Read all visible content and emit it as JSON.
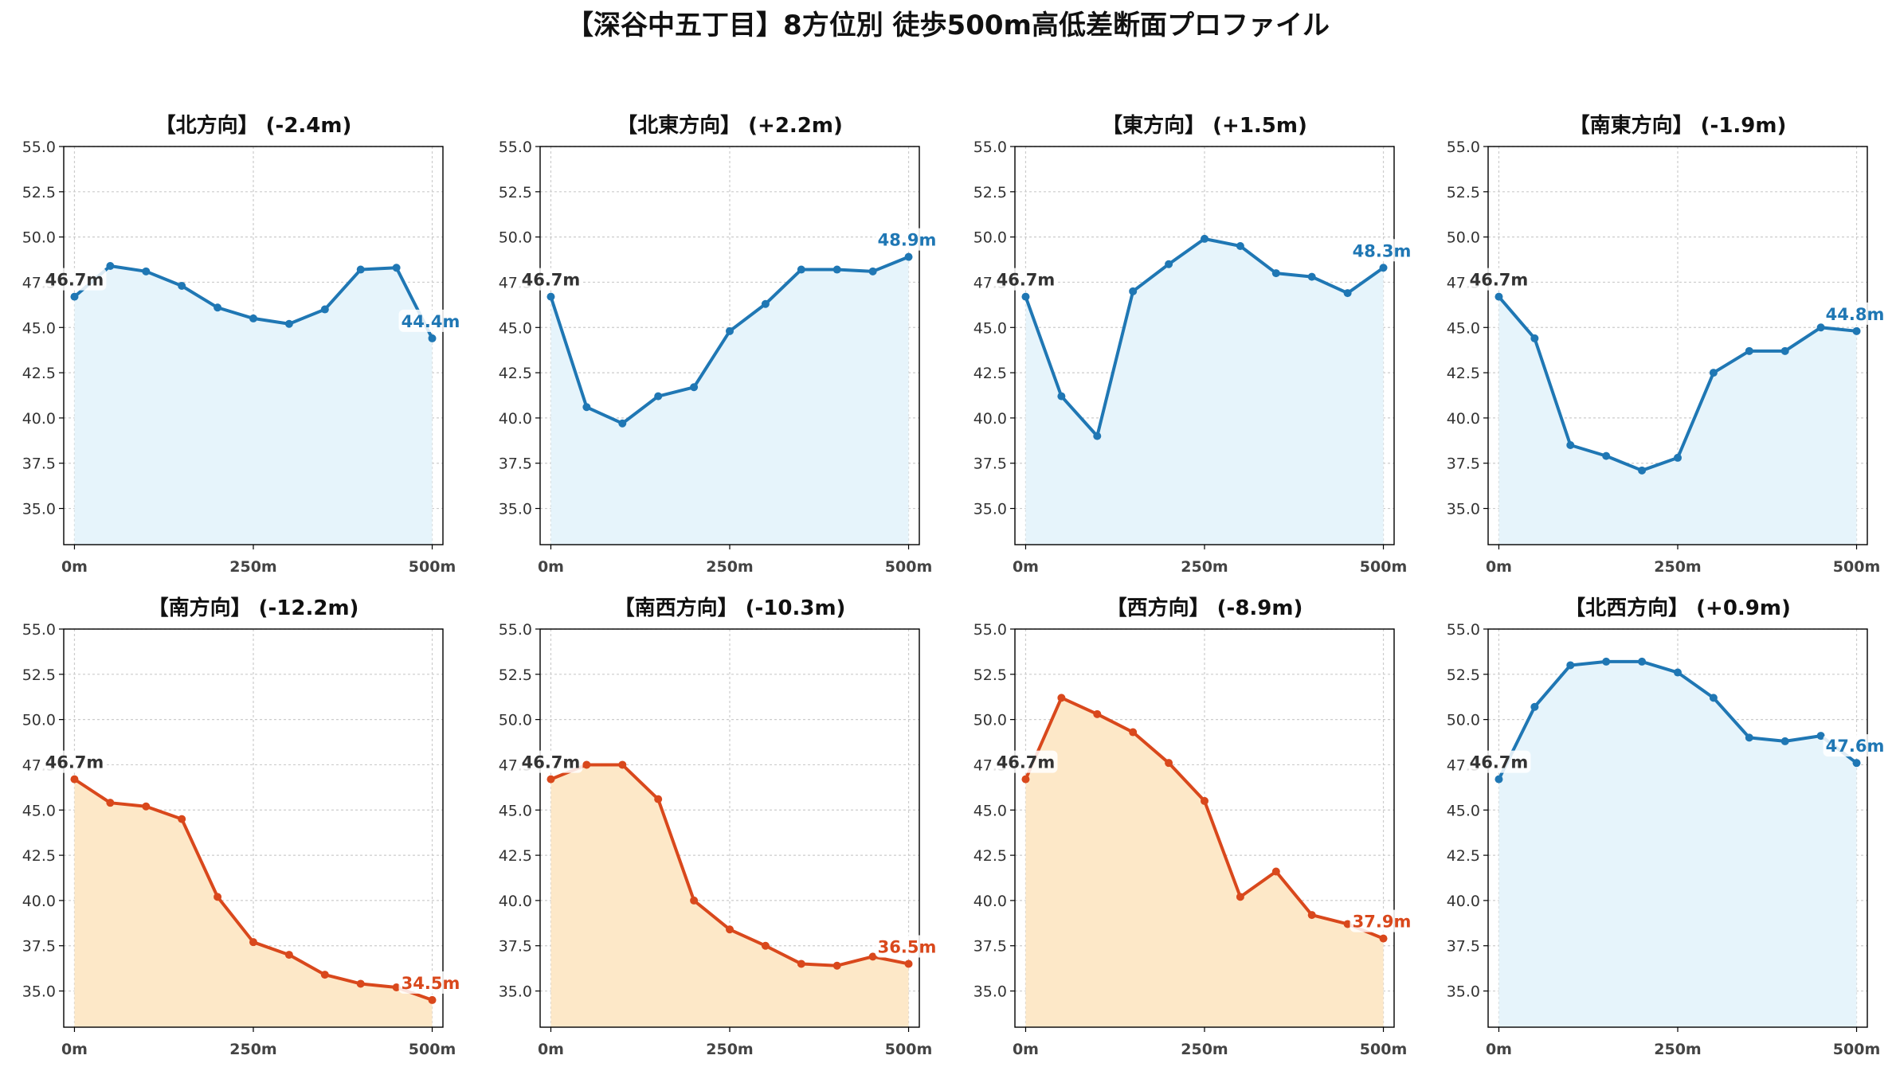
{
  "title": "【深谷中五丁目】8方位別 徒歩500m高低差断面プロファイル",
  "colors": {
    "up_line": "#1f77b4",
    "up_fill": "#e6f4fb",
    "down_line": "#d9481c",
    "down_fill": "#fde8c8",
    "start_label": "#333333",
    "grid": "#cccccc"
  },
  "chart_data": [
    {
      "type": "area",
      "title": "【北方向】 (-2.4m)",
      "trend": "up",
      "x": [
        0,
        50,
        100,
        150,
        200,
        250,
        300,
        350,
        400,
        450,
        500
      ],
      "values": [
        46.7,
        48.4,
        48.1,
        47.3,
        46.1,
        45.5,
        45.2,
        46.0,
        48.2,
        48.3,
        44.4
      ],
      "start_label": "46.7m",
      "end_label": "44.4m",
      "xticks": [
        "0m",
        "250m",
        "500m"
      ],
      "yticks": [
        "35.0",
        "37.5",
        "40.0",
        "42.5",
        "45.0",
        "47.5",
        "50.0",
        "52.5",
        "55.0"
      ],
      "ylim": [
        33,
        55
      ],
      "xlim": [
        -15,
        515
      ],
      "grid": true
    },
    {
      "type": "area",
      "title": "【北東方向】 (+2.2m)",
      "trend": "up",
      "x": [
        0,
        50,
        100,
        150,
        200,
        250,
        300,
        350,
        400,
        450,
        500
      ],
      "values": [
        46.7,
        40.6,
        39.7,
        41.2,
        41.7,
        44.8,
        46.3,
        48.2,
        48.2,
        48.1,
        48.9
      ],
      "start_label": "46.7m",
      "end_label": "48.9m",
      "xticks": [
        "0m",
        "250m",
        "500m"
      ],
      "yticks": [
        "35.0",
        "37.5",
        "40.0",
        "42.5",
        "45.0",
        "47.5",
        "50.0",
        "52.5",
        "55.0"
      ],
      "ylim": [
        33,
        55
      ],
      "xlim": [
        -15,
        515
      ],
      "grid": true
    },
    {
      "type": "area",
      "title": "【東方向】 (+1.5m)",
      "trend": "up",
      "x": [
        0,
        50,
        100,
        150,
        200,
        250,
        300,
        350,
        400,
        450,
        500
      ],
      "values": [
        46.7,
        41.2,
        39.0,
        47.0,
        48.5,
        49.9,
        49.5,
        48.0,
        47.8,
        46.9,
        48.3
      ],
      "start_label": "46.7m",
      "end_label": "48.3m",
      "xticks": [
        "0m",
        "250m",
        "500m"
      ],
      "yticks": [
        "35.0",
        "37.5",
        "40.0",
        "42.5",
        "45.0",
        "47.5",
        "50.0",
        "52.5",
        "55.0"
      ],
      "ylim": [
        33,
        55
      ],
      "xlim": [
        -15,
        515
      ],
      "grid": true
    },
    {
      "type": "area",
      "title": "【南東方向】 (-1.9m)",
      "trend": "up",
      "x": [
        0,
        50,
        100,
        150,
        200,
        250,
        300,
        350,
        400,
        450,
        500
      ],
      "values": [
        46.7,
        44.4,
        38.5,
        37.9,
        37.1,
        37.8,
        42.5,
        43.7,
        43.7,
        45.0,
        44.8
      ],
      "start_label": "46.7m",
      "end_label": "44.8m",
      "xticks": [
        "0m",
        "250m",
        "500m"
      ],
      "yticks": [
        "35.0",
        "37.5",
        "40.0",
        "42.5",
        "45.0",
        "47.5",
        "50.0",
        "52.5",
        "55.0"
      ],
      "ylim": [
        33,
        55
      ],
      "xlim": [
        -15,
        515
      ],
      "grid": true
    },
    {
      "type": "area",
      "title": "【南方向】 (-12.2m)",
      "trend": "down",
      "x": [
        0,
        50,
        100,
        150,
        200,
        250,
        300,
        350,
        400,
        450,
        500
      ],
      "values": [
        46.7,
        45.4,
        45.2,
        44.5,
        40.2,
        37.7,
        37.0,
        35.9,
        35.4,
        35.2,
        34.5
      ],
      "start_label": "46.7m",
      "end_label": "34.5m",
      "xticks": [
        "0m",
        "250m",
        "500m"
      ],
      "yticks": [
        "35.0",
        "37.5",
        "40.0",
        "42.5",
        "45.0",
        "47.5",
        "50.0",
        "52.5",
        "55.0"
      ],
      "ylim": [
        33,
        55
      ],
      "xlim": [
        -15,
        515
      ],
      "grid": true
    },
    {
      "type": "area",
      "title": "【南西方向】 (-10.3m)",
      "trend": "down",
      "x": [
        0,
        50,
        100,
        150,
        200,
        250,
        300,
        350,
        400,
        450,
        500
      ],
      "values": [
        46.7,
        47.5,
        47.5,
        45.6,
        40.0,
        38.4,
        37.5,
        36.5,
        36.4,
        36.9,
        36.5
      ],
      "start_label": "46.7m",
      "end_label": "36.5m",
      "xticks": [
        "0m",
        "250m",
        "500m"
      ],
      "yticks": [
        "35.0",
        "37.5",
        "40.0",
        "42.5",
        "45.0",
        "47.5",
        "50.0",
        "52.5",
        "55.0"
      ],
      "ylim": [
        33,
        55
      ],
      "xlim": [
        -15,
        515
      ],
      "grid": true
    },
    {
      "type": "area",
      "title": "【西方向】 (-8.9m)",
      "trend": "down",
      "x": [
        0,
        50,
        100,
        150,
        200,
        250,
        300,
        350,
        400,
        450,
        500
      ],
      "values": [
        46.7,
        51.2,
        50.3,
        49.3,
        47.6,
        45.5,
        40.2,
        41.6,
        39.2,
        38.7,
        37.9
      ],
      "start_label": "46.7m",
      "end_label": "37.9m",
      "xticks": [
        "0m",
        "250m",
        "500m"
      ],
      "yticks": [
        "35.0",
        "37.5",
        "40.0",
        "42.5",
        "45.0",
        "47.5",
        "50.0",
        "52.5",
        "55.0"
      ],
      "ylim": [
        33,
        55
      ],
      "xlim": [
        -15,
        515
      ],
      "grid": true
    },
    {
      "type": "area",
      "title": "【北西方向】 (+0.9m)",
      "trend": "up",
      "x": [
        0,
        50,
        100,
        150,
        200,
        250,
        300,
        350,
        400,
        450,
        500
      ],
      "values": [
        46.7,
        50.7,
        53.0,
        53.2,
        53.2,
        52.6,
        51.2,
        49.0,
        48.8,
        49.1,
        47.6
      ],
      "start_label": "46.7m",
      "end_label": "47.6m",
      "xticks": [
        "0m",
        "250m",
        "500m"
      ],
      "yticks": [
        "35.0",
        "37.5",
        "40.0",
        "42.5",
        "45.0",
        "47.5",
        "50.0",
        "52.5",
        "55.0"
      ],
      "ylim": [
        33,
        55
      ],
      "xlim": [
        -15,
        515
      ],
      "grid": true
    }
  ]
}
